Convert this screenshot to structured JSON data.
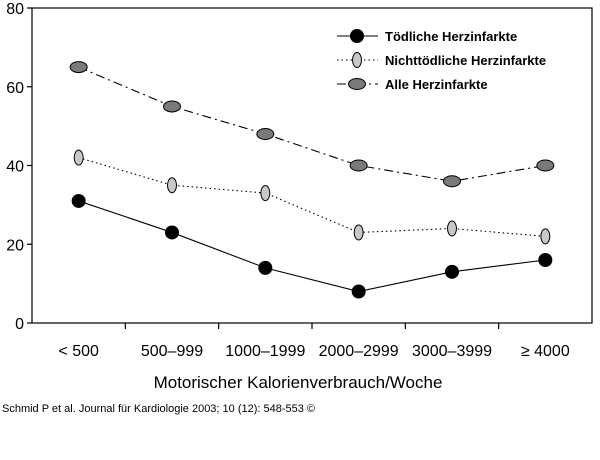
{
  "chart_data": {
    "type": "line",
    "categories": [
      "< 500",
      "500–999",
      "1000–1999",
      "2000–2999",
      "3000–3999",
      "≥ 4000"
    ],
    "xlabel": "Motorischer Kalorienverbrauch/Woche",
    "ylabel": "",
    "ylim": [
      0,
      80
    ],
    "yticks": [
      0,
      20,
      40,
      60,
      80
    ],
    "grid": false,
    "legend": "top-right",
    "series": [
      {
        "name": "Tödliche Herzinfarkte",
        "values": [
          31,
          23,
          14,
          8,
          13,
          16
        ],
        "line": "solid",
        "marker": "#000000"
      },
      {
        "name": "Nichttödliche Herzinfarkte",
        "values": [
          42,
          35,
          33,
          23,
          24,
          22
        ],
        "line": "dotted",
        "marker": "#c8c8c8"
      },
      {
        "name": "Alle Herzinfarkte",
        "values": [
          65,
          55,
          48,
          40,
          36,
          40
        ],
        "line": "dash-dot",
        "marker": "#7a7a7a"
      }
    ]
  },
  "citation": "Schmid P et al. Journal für Kardiologie 2003; 10 (12): 548-553 ©"
}
